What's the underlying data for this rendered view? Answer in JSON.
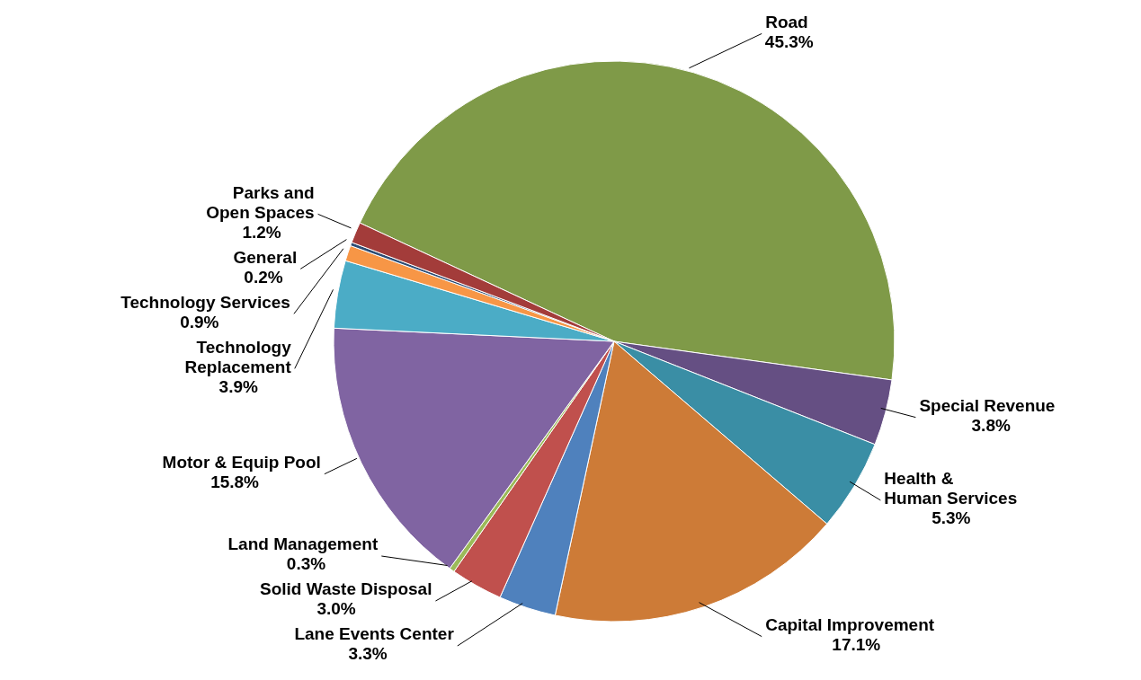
{
  "chart_data": {
    "type": "pie",
    "categories": [
      "Road",
      "Special Revenue",
      "Health & Human Services",
      "Capital Improvement",
      "Lane Events Center",
      "Solid Waste Disposal",
      "Land Management",
      "Motor & Equip Pool",
      "Technology Replacement",
      "Technology Services",
      "General",
      "Parks and Open Spaces"
    ],
    "values": [
      45.3,
      3.8,
      5.3,
      17.1,
      3.3,
      3.0,
      0.3,
      15.8,
      3.9,
      0.9,
      0.2,
      1.2
    ],
    "colors": [
      "#7f9a48",
      "#654f83",
      "#3a8ea5",
      "#cd7b37",
      "#4f81bd",
      "#c0504d",
      "#9bbb59",
      "#8064a2",
      "#4bacc6",
      "#f79646",
      "#2c4d75",
      "#a33c3a"
    ],
    "value_labels": [
      "45.3%",
      "3.8%",
      "5.3%",
      "17.1%",
      "3.3%",
      "3.0%",
      "0.3%",
      "15.8%",
      "3.9%",
      "0.9%",
      "0.2%",
      "1.2%"
    ]
  }
}
